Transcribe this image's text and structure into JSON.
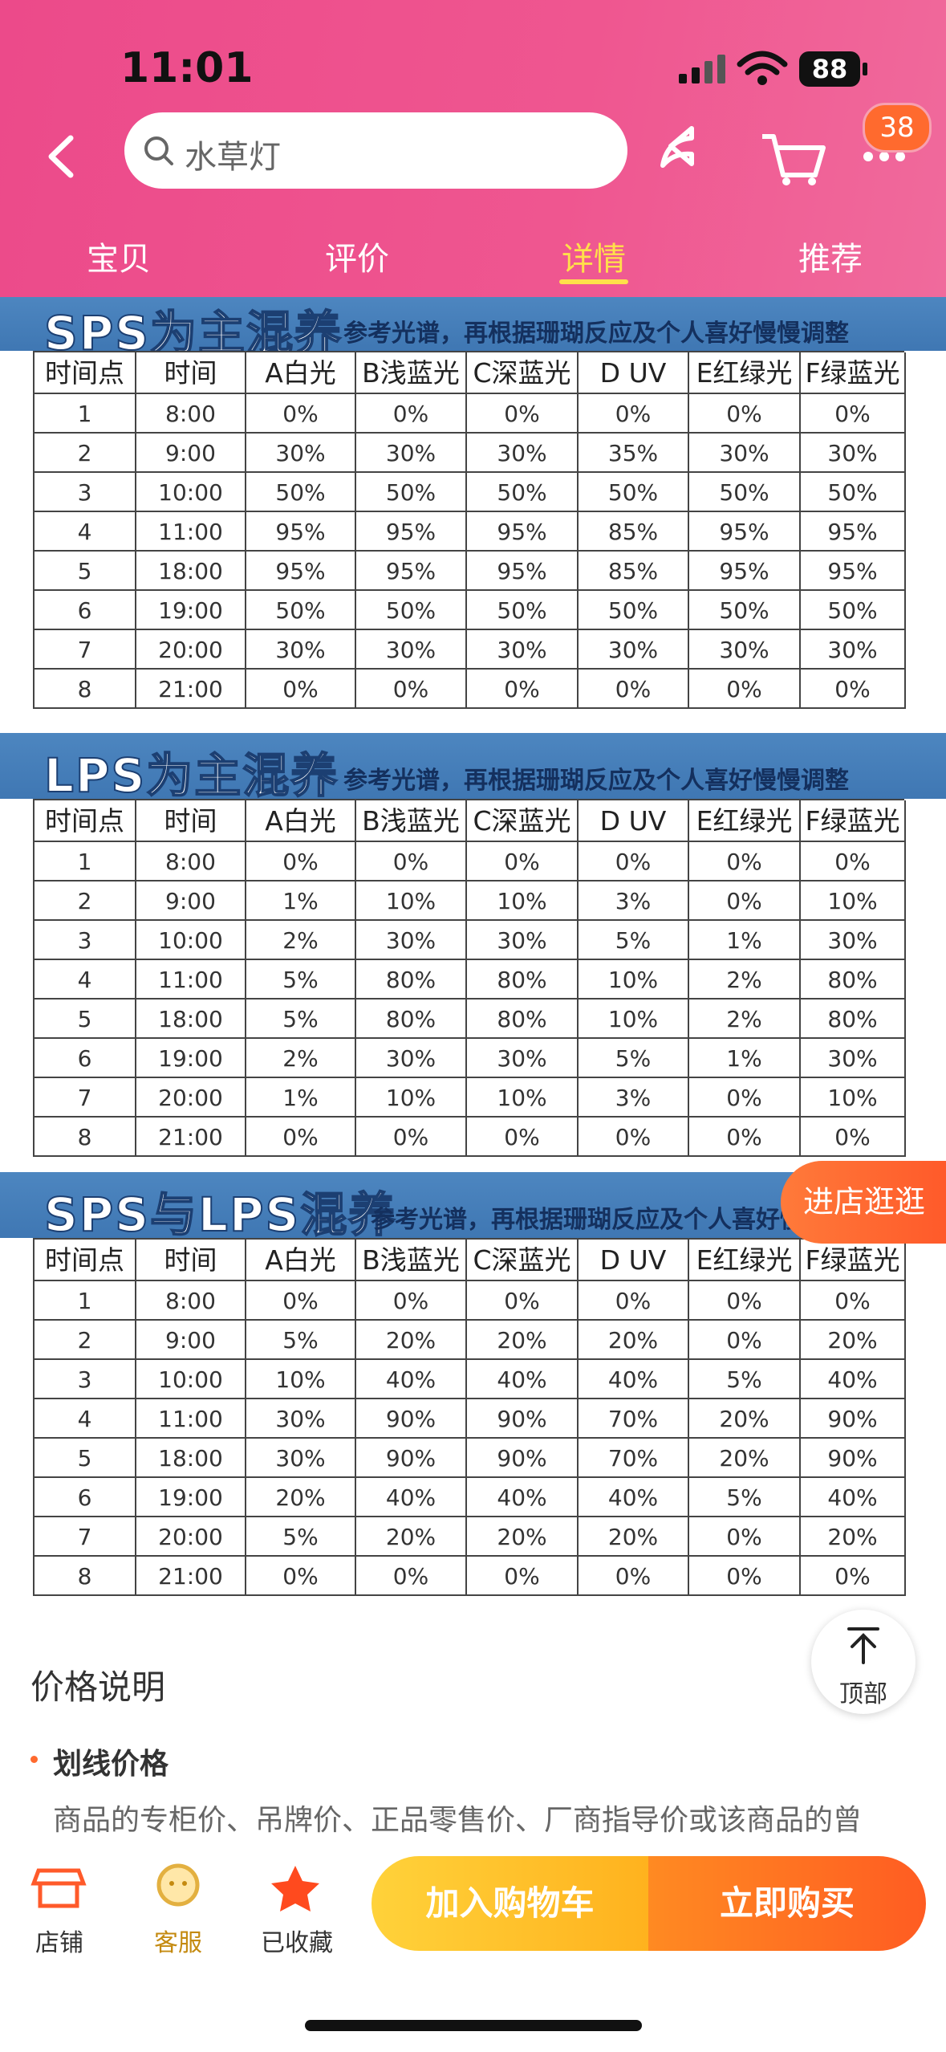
{
  "status_bar": {
    "time": "11:01",
    "battery": "88"
  },
  "nav": {
    "search_placeholder": "水草灯",
    "badge": "38"
  },
  "tabs": {
    "items": [
      "宝贝",
      "评价",
      "详情",
      "推荐"
    ],
    "active": 2
  },
  "tables": [
    {
      "title": "SPS为主混养",
      "subtitle": "参考光谱，再根据珊瑚反应及个人喜好慢慢调整",
      "header": [
        "时间点",
        "时间",
        "A白光",
        "B浅蓝光",
        "C深蓝光",
        "D UV",
        "E红绿光",
        "F绿蓝光"
      ],
      "rows": [
        [
          "1",
          "8:00",
          "0%",
          "0%",
          "0%",
          "0%",
          "0%",
          "0%"
        ],
        [
          "2",
          "9:00",
          "30%",
          "30%",
          "30%",
          "35%",
          "30%",
          "30%"
        ],
        [
          "3",
          "10:00",
          "50%",
          "50%",
          "50%",
          "50%",
          "50%",
          "50%"
        ],
        [
          "4",
          "11:00",
          "95%",
          "95%",
          "95%",
          "85%",
          "95%",
          "95%"
        ],
        [
          "5",
          "18:00",
          "95%",
          "95%",
          "95%",
          "85%",
          "95%",
          "95%"
        ],
        [
          "6",
          "19:00",
          "50%",
          "50%",
          "50%",
          "50%",
          "50%",
          "50%"
        ],
        [
          "7",
          "20:00",
          "30%",
          "30%",
          "30%",
          "30%",
          "30%",
          "30%"
        ],
        [
          "8",
          "21:00",
          "0%",
          "0%",
          "0%",
          "0%",
          "0%",
          "0%"
        ]
      ]
    },
    {
      "title": "LPS为主混养",
      "subtitle": "参考光谱，再根据珊瑚反应及个人喜好慢慢调整",
      "header": [
        "时间点",
        "时间",
        "A白光",
        "B浅蓝光",
        "C深蓝光",
        "D UV",
        "E红绿光",
        "F绿蓝光"
      ],
      "rows": [
        [
          "1",
          "8:00",
          "0%",
          "0%",
          "0%",
          "0%",
          "0%",
          "0%"
        ],
        [
          "2",
          "9:00",
          "1%",
          "10%",
          "10%",
          "3%",
          "0%",
          "10%"
        ],
        [
          "3",
          "10:00",
          "2%",
          "30%",
          "30%",
          "5%",
          "1%",
          "30%"
        ],
        [
          "4",
          "11:00",
          "5%",
          "80%",
          "80%",
          "10%",
          "2%",
          "80%"
        ],
        [
          "5",
          "18:00",
          "5%",
          "80%",
          "80%",
          "10%",
          "2%",
          "80%"
        ],
        [
          "6",
          "19:00",
          "2%",
          "30%",
          "30%",
          "5%",
          "1%",
          "30%"
        ],
        [
          "7",
          "20:00",
          "1%",
          "10%",
          "10%",
          "3%",
          "0%",
          "10%"
        ],
        [
          "8",
          "21:00",
          "0%",
          "0%",
          "0%",
          "0%",
          "0%",
          "0%"
        ]
      ]
    },
    {
      "title": "SPS与LPS混养",
      "subtitle": "参考光谱，再根据珊瑚反应及个人喜好慢慢调整",
      "header": [
        "时间点",
        "时间",
        "A白光",
        "B浅蓝光",
        "C深蓝光",
        "D UV",
        "E红绿光",
        "F绿蓝光"
      ],
      "rows": [
        [
          "1",
          "8:00",
          "0%",
          "0%",
          "0%",
          "0%",
          "0%",
          "0%"
        ],
        [
          "2",
          "9:00",
          "5%",
          "20%",
          "20%",
          "20%",
          "0%",
          "20%"
        ],
        [
          "3",
          "10:00",
          "10%",
          "40%",
          "40%",
          "40%",
          "5%",
          "40%"
        ],
        [
          "4",
          "11:00",
          "30%",
          "90%",
          "90%",
          "70%",
          "20%",
          "90%"
        ],
        [
          "5",
          "18:00",
          "30%",
          "90%",
          "90%",
          "70%",
          "20%",
          "90%"
        ],
        [
          "6",
          "19:00",
          "20%",
          "40%",
          "40%",
          "40%",
          "5%",
          "40%"
        ],
        [
          "7",
          "20:00",
          "5%",
          "20%",
          "20%",
          "20%",
          "0%",
          "20%"
        ],
        [
          "8",
          "21:00",
          "0%",
          "0%",
          "0%",
          "0%",
          "0%",
          "0%"
        ]
      ]
    }
  ],
  "floating": {
    "store": "进店逛逛",
    "top": "顶部"
  },
  "price": {
    "heading": "价格说明",
    "item_title": "划线价格",
    "item_text": "商品的专柜价、吊牌价、正品零售价、厂商指导价或该商品的曾"
  },
  "bottom_bar": {
    "store": "店铺",
    "service": "客服",
    "favorite": "已收藏",
    "add_cart": "加入购物车",
    "buy": "立即购买"
  }
}
